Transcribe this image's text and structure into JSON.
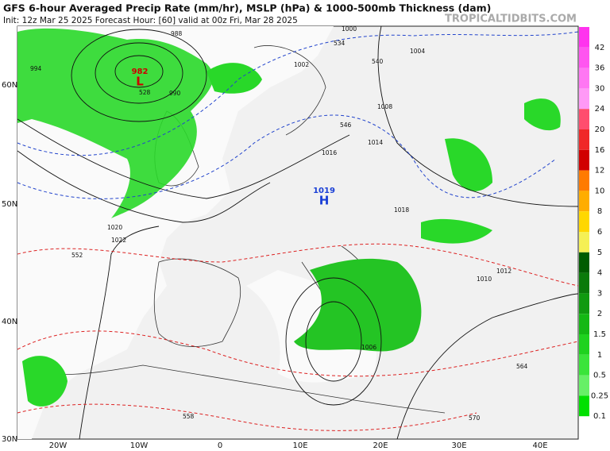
{
  "header": {
    "title": "GFS 6-hour Averaged Precip Rate (mm/hr), MSLP (hPa) & 1000-500mb Thickness (dam)",
    "subtitle": "Init: 12z Mar 25 2025   Forecast Hour: [60]   valid at 00z Fri, Mar 28 2025",
    "watermark": "TROPICALTIDBITS.COM"
  },
  "map": {
    "latitude_labels": [
      "60N",
      "50N",
      "40N",
      "30N"
    ],
    "longitude_labels": [
      "20W",
      "10W",
      "0",
      "10E",
      "20E",
      "30E",
      "40E"
    ],
    "pressure_centers": [
      {
        "value": "982",
        "letter": "L",
        "color": "#cc0000"
      },
      {
        "value": "1019",
        "letter": "H",
        "color": "#1a3fd6"
      }
    ],
    "isobar_labels": [
      "988",
      "994",
      "990",
      "1002",
      "1004",
      "1006",
      "1008",
      "1010",
      "1012",
      "1014",
      "1016",
      "1018",
      "1020",
      "1022",
      "1000"
    ],
    "thickness_labels": [
      "534",
      "540",
      "528",
      "546",
      "552",
      "558",
      "564",
      "570"
    ]
  },
  "colorbar": [
    {
      "label": "42",
      "color": "#ff33ee"
    },
    {
      "label": "36",
      "color": "#ff55f0"
    },
    {
      "label": "30",
      "color": "#ff77f3"
    },
    {
      "label": "24",
      "color": "#ff99f6"
    },
    {
      "label": "20",
      "color": "#ff4d6e"
    },
    {
      "label": "16",
      "color": "#f02828"
    },
    {
      "label": "12",
      "color": "#d10000"
    },
    {
      "label": "10",
      "color": "#ff7b00"
    },
    {
      "label": "8",
      "color": "#ffad00"
    },
    {
      "label": "6",
      "color": "#ffd700"
    },
    {
      "label": "5",
      "color": "#f5f055"
    },
    {
      "label": "4",
      "color": "#005c00"
    },
    {
      "label": "3",
      "color": "#0a7a0a"
    },
    {
      "label": "2",
      "color": "#109a10"
    },
    {
      "label": "1.5",
      "color": "#14b814"
    },
    {
      "label": "1",
      "color": "#1fd21f"
    },
    {
      "label": "0.5",
      "color": "#3ae43a"
    },
    {
      "label": "0.25",
      "color": "#66f066"
    },
    {
      "label": "0.1",
      "color": "#00e000"
    }
  ]
}
